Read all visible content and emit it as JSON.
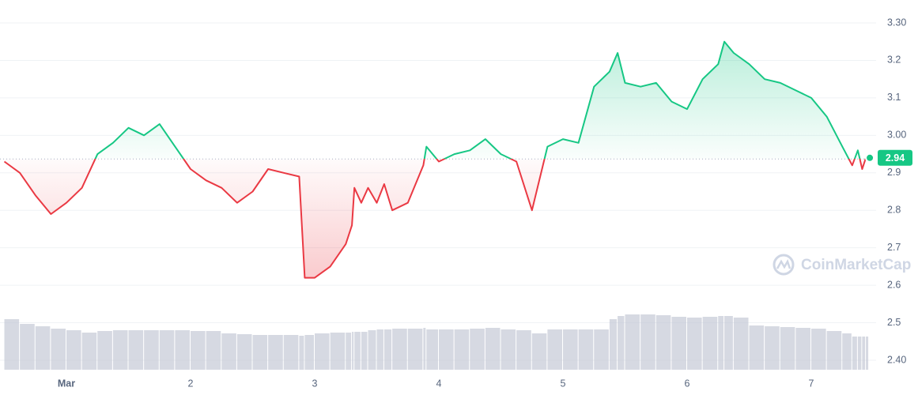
{
  "chart_data": {
    "type": "line",
    "watermark": "CoinMarketCap",
    "up_color": "#16c784",
    "down_color": "#ea3943",
    "volume_color": "#c4c9d6",
    "baseline": 2.937,
    "last_price": 2.94,
    "grid": true,
    "xlim": [
      0.465,
      7.44
    ],
    "xticks": [
      {
        "value": 1,
        "label": "Mar"
      },
      2,
      3,
      4,
      5,
      6,
      7
    ],
    "ylim": [
      2.4,
      3.3
    ],
    "yticks": [
      {
        "value": 2.4,
        "label": "2.40"
      },
      2.5,
      2.6,
      2.7,
      2.8,
      2.9,
      {
        "value": 3.0,
        "label": "3.00"
      },
      3.1,
      3.2,
      {
        "value": 3.3,
        "label": "3.30"
      }
    ],
    "x": [
      0.5,
      0.625,
      0.75,
      0.875,
      1.0,
      1.125,
      1.25,
      1.375,
      1.5,
      1.625,
      1.75,
      1.875,
      2.0,
      2.125,
      2.25,
      2.375,
      2.5,
      2.625,
      2.75,
      2.875,
      2.92,
      3.0,
      3.125,
      3.25,
      3.3,
      3.32,
      3.375,
      3.43,
      3.5,
      3.56,
      3.625,
      3.75,
      3.875,
      3.9,
      4.0,
      4.125,
      4.25,
      4.375,
      4.5,
      4.625,
      4.75,
      4.875,
      5.0,
      5.125,
      5.25,
      5.375,
      5.44,
      5.5,
      5.625,
      5.75,
      5.875,
      6.0,
      6.125,
      6.25,
      6.3,
      6.375,
      6.5,
      6.625,
      6.75,
      6.875,
      7.0,
      7.125,
      7.25,
      7.33,
      7.375,
      7.41,
      7.44
    ],
    "values": [
      2.93,
      2.9,
      2.84,
      2.79,
      2.82,
      2.86,
      2.95,
      2.98,
      3.02,
      3.0,
      3.03,
      2.97,
      2.91,
      2.88,
      2.86,
      2.82,
      2.85,
      2.91,
      2.9,
      2.89,
      2.62,
      2.62,
      2.65,
      2.71,
      2.76,
      2.86,
      2.82,
      2.86,
      2.82,
      2.87,
      2.8,
      2.82,
      2.92,
      2.97,
      2.93,
      2.95,
      2.96,
      2.99,
      2.95,
      2.93,
      2.8,
      2.97,
      2.99,
      2.98,
      3.13,
      3.17,
      3.22,
      3.14,
      3.13,
      3.14,
      3.09,
      3.07,
      3.15,
      3.19,
      3.25,
      3.22,
      3.19,
      3.15,
      3.14,
      3.12,
      3.1,
      3.05,
      2.97,
      2.92,
      2.96,
      2.91,
      2.94
    ],
    "volume": [
      64,
      58,
      55,
      52,
      50,
      47,
      49,
      50,
      50,
      50,
      50,
      50,
      49,
      49,
      46,
      45,
      44,
      44,
      44,
      43,
      44,
      46,
      47,
      47,
      48,
      48,
      48,
      50,
      51,
      51,
      52,
      52,
      53,
      51,
      51,
      51,
      52,
      53,
      51,
      50,
      46,
      51,
      51,
      51,
      51,
      64,
      68,
      70,
      70,
      69,
      67,
      66,
      67,
      68,
      68,
      66,
      56,
      55,
      54,
      53,
      52,
      49,
      46,
      42,
      42,
      42,
      42
    ]
  }
}
